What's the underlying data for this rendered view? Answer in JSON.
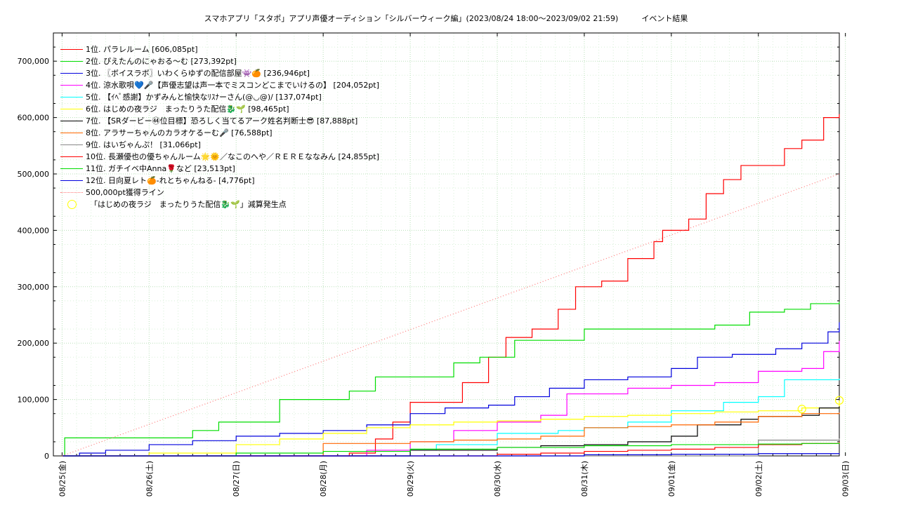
{
  "chart_data": {
    "type": "line",
    "title": "スマホアプリ「スタポ」アプリ声優オーディション「シルバーウィーク編」(2023/08/24 18:00〜2023/09/02 21:59)　　　イベント結果",
    "xlabel": "",
    "ylabel": "",
    "x_tick_labels": [
      "08/25(金)",
      "08/26(土)",
      "08/27(日)",
      "08/28(月)",
      "08/29(火)",
      "08/30(水)",
      "08/31(木)",
      "09/01(金)",
      "09/02(土)",
      "09/03(日)"
    ],
    "xlim": [
      -0.1,
      8.93
    ],
    "ylim": [
      0,
      750000
    ],
    "y_ticks": [
      0,
      100000,
      200000,
      300000,
      400000,
      500000,
      600000,
      700000
    ],
    "y_tick_labels": [
      "0",
      "100,000",
      "200,000",
      "300,000",
      "400,000",
      "500,000",
      "600,000",
      "700,000"
    ],
    "grid": true,
    "legend_position": "top-left",
    "series": [
      {
        "name": "1位. パラレルーム [606,085pt]",
        "color": "#ff0000",
        "x": [
          0,
          3,
          3.3,
          3.6,
          3.8,
          4.0,
          4.3,
          4.6,
          4.9,
          5.1,
          5.4,
          5.7,
          5.9,
          6.2,
          6.5,
          6.8,
          6.9,
          7.2,
          7.4,
          7.6,
          7.8,
          8.1,
          8.3,
          8.5,
          8.75,
          8.93
        ],
        "y": [
          0,
          0,
          5000,
          30000,
          60000,
          95000,
          95000,
          130000,
          175000,
          210000,
          225000,
          260000,
          300000,
          310000,
          350000,
          380000,
          400000,
          420000,
          465000,
          490000,
          515000,
          515000,
          545000,
          560000,
          600000,
          606085
        ]
      },
      {
        "name": "2位. ぴえたんのにゃおる〜む [273,392pt]",
        "color": "#00dd00",
        "x": [
          0,
          0.03,
          1.0,
          1.5,
          1.8,
          2.5,
          3.3,
          3.6,
          4.5,
          4.8,
          5.2,
          6.0,
          7.0,
          7.5,
          7.9,
          8.3,
          8.6,
          8.93
        ],
        "y": [
          0,
          32000,
          32000,
          45000,
          60000,
          100000,
          115000,
          140000,
          165000,
          175000,
          205000,
          225000,
          225000,
          232000,
          255000,
          260000,
          270000,
          273392
        ]
      },
      {
        "name": "3位. 〖ボイスラボ〗いわくらゆずの配信部屋👾🍊 [236,946pt]",
        "color": "#0000dd",
        "x": [
          0,
          0.2,
          0.5,
          1.0,
          1.5,
          2.0,
          2.5,
          3.0,
          3.5,
          4.0,
          4.4,
          4.9,
          5.2,
          5.6,
          6.0,
          6.5,
          7.0,
          7.3,
          7.7,
          8.2,
          8.5,
          8.8,
          8.93
        ],
        "y": [
          0,
          5000,
          10000,
          20000,
          27000,
          35000,
          40000,
          45000,
          55000,
          75000,
          85000,
          90000,
          105000,
          120000,
          135000,
          140000,
          155000,
          175000,
          180000,
          190000,
          200000,
          220000,
          236946
        ]
      },
      {
        "name": "4位. 涼水歌唄💙🎤【声優志望は声一本でミスコンどこまでいけるの】 [204,052pt]",
        "color": "#ff00ff",
        "x": [
          0,
          3.0,
          3.5,
          4.0,
          4.5,
          5.0,
          5.5,
          5.8,
          6.5,
          7.0,
          7.5,
          8.0,
          8.5,
          8.75,
          8.93
        ],
        "y": [
          0,
          0,
          10000,
          25000,
          45000,
          60000,
          72000,
          110000,
          120000,
          125000,
          130000,
          150000,
          155000,
          185000,
          204052
        ]
      },
      {
        "name": "5位. 【ｲﾍﾞ感謝】かずみんと愉快なﾘｽﾅーさん(@◡@)/ [137,074pt]",
        "color": "#00ffff",
        "x": [
          0,
          3.0,
          4.0,
          4.3,
          5.0,
          5.7,
          6.0,
          6.5,
          7.0,
          7.6,
          8.0,
          8.3,
          8.93
        ],
        "y": [
          0,
          0,
          10000,
          20000,
          40000,
          45000,
          50000,
          60000,
          80000,
          95000,
          105000,
          135000,
          137074
        ]
      },
      {
        "name": "6位. はじめの夜ラジ　まったりうた配信🐉🌱 [98,465pt]",
        "color": "#ffff00",
        "x": [
          0,
          1.0,
          2.0,
          2.5,
          3.0,
          3.5,
          4.0,
          4.5,
          5.0,
          5.5,
          6.0,
          6.5,
          7.0,
          7.5,
          8.0,
          8.5,
          8.93
        ],
        "y": [
          0,
          5000,
          20000,
          30000,
          40000,
          50000,
          55000,
          60000,
          62000,
          65000,
          70000,
          72000,
          75000,
          78000,
          80000,
          85000,
          98465
        ]
      },
      {
        "name": "7位. 【SRダービー㊹位目標】恐ろしく当てるアーク姓名判断士😎 [87,888pt]",
        "color": "#000000",
        "x": [
          0,
          3.2,
          4.0,
          5.0,
          5.5,
          6.0,
          6.5,
          7.0,
          7.3,
          7.8,
          8.0,
          8.5,
          8.7,
          8.93
        ],
        "y": [
          0,
          0,
          10000,
          15000,
          18000,
          20000,
          25000,
          35000,
          55000,
          65000,
          70000,
          72000,
          85000,
          87888
        ]
      },
      {
        "name": "8位. アラサーちゃんのカラオケるーむ🎤 [76,588pt]",
        "color": "#ff6600",
        "x": [
          0,
          3.0,
          4.0,
          4.5,
          5.0,
          5.5,
          6.0,
          6.5,
          7.0,
          7.5,
          8.0,
          8.5,
          8.93
        ],
        "y": [
          0,
          22000,
          25000,
          28000,
          30000,
          35000,
          50000,
          52000,
          55000,
          60000,
          70000,
          75000,
          76588
        ]
      },
      {
        "name": "9位. はいぢゃんぷ！ [31,066pt]",
        "color": "#888888",
        "x": [
          0,
          7.9,
          8.0,
          8.93
        ],
        "y": [
          0,
          0,
          28000,
          31066
        ]
      },
      {
        "name": "10位. 長瀬優也の優ちゃんルーム🌟🌞／なこのへや／ＲＥＲＥななみん [24,855pt]",
        "color": "#ff0000",
        "x": [
          0,
          4.5,
          5.0,
          5.5,
          6.0,
          6.5,
          7.0,
          7.5,
          8.0,
          8.5,
          8.93
        ],
        "y": [
          0,
          0,
          3000,
          5000,
          8000,
          10000,
          12000,
          15000,
          20000,
          22000,
          24855
        ]
      },
      {
        "name": "11位. ガチイベ中Anna🌹など [23,513pt]",
        "color": "#00dd00",
        "x": [
          0,
          2.0,
          3.0,
          4.0,
          5.0,
          6.0,
          7.0,
          8.0,
          8.5,
          8.93
        ],
        "y": [
          0,
          5000,
          8000,
          12000,
          15000,
          18000,
          20000,
          21000,
          22000,
          23513
        ]
      },
      {
        "name": "12位. 日向夏レト🍊-れとちゃんねる- [4,776pt]",
        "color": "#0000dd",
        "x": [
          0,
          5.0,
          6.0,
          7.0,
          8.0,
          8.93
        ],
        "y": [
          0,
          0,
          2000,
          3000,
          4000,
          4776
        ]
      },
      {
        "name": "500,000pt獲得ライン",
        "color": "#ff7777",
        "dotted": true,
        "x": [
          0,
          8.93
        ],
        "y": [
          0,
          500000
        ]
      }
    ],
    "markers": {
      "name": "「はじめの夜ラジ　まったりうた配信🐉🌱」減算発生点",
      "color": "#ffff00",
      "points": [
        {
          "x": 8.5,
          "y": 83000
        },
        {
          "x": 8.93,
          "y": 98465
        }
      ]
    }
  }
}
